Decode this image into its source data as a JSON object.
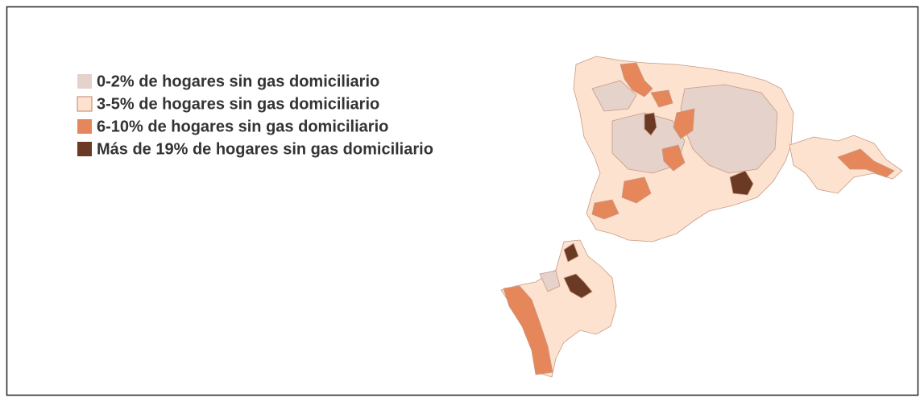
{
  "legend": {
    "items": [
      {
        "label": "0-2% de hogares sin gas domiciliario",
        "color": "#e5d2cb"
      },
      {
        "label": "3-5% de hogares sin gas domiciliario",
        "color": "#fde2cf"
      },
      {
        "label": "6-10% de hogares sin gas domiciliario",
        "color": "#e5875a"
      },
      {
        "label": "Más de 19% de hogares sin gas domiciliario",
        "color": "#6b3a25"
      }
    ]
  }
}
